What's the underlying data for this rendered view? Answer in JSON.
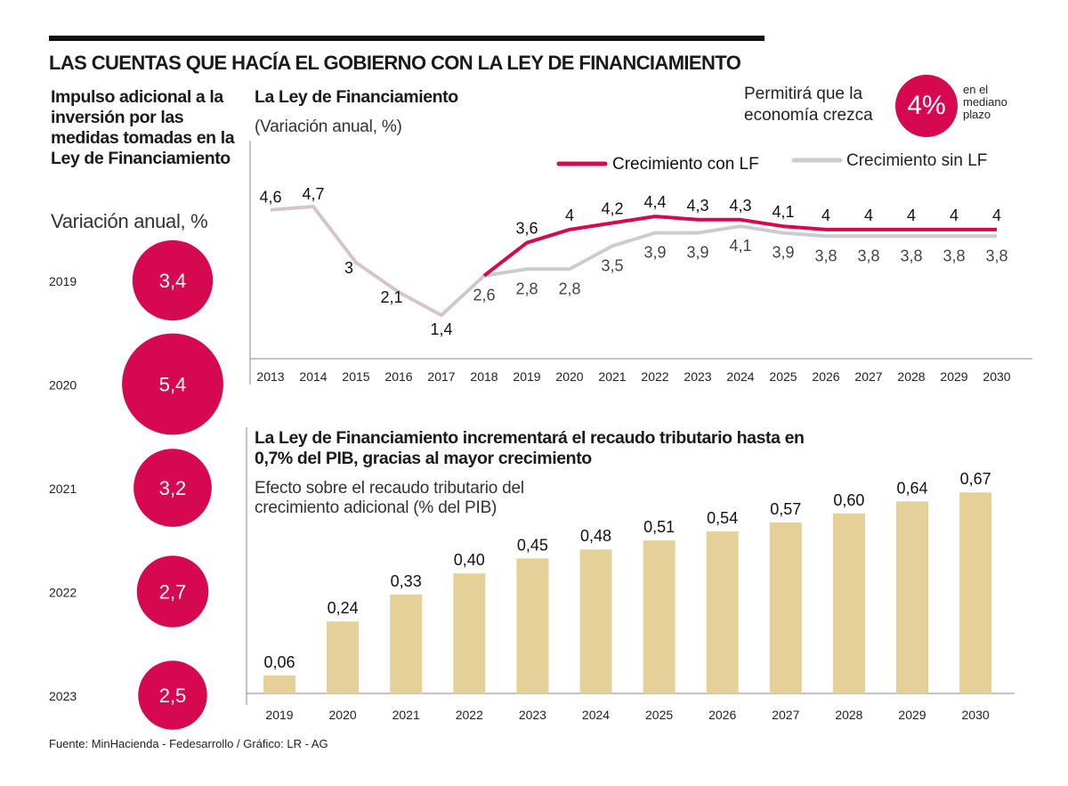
{
  "title": "LAS CUENTAS QUE HACÍA EL GOBIERNO CON LA LEY DE FINANCIAMIENTO",
  "left_panel": {
    "title": "Impulso adicional a la inversión por las medidas tomadas en la Ley de Financiamiento",
    "subtitle": "Variación anual, %",
    "items": [
      {
        "year": "2019",
        "value": 3.4,
        "label": "3,4"
      },
      {
        "year": "2020",
        "value": 5.4,
        "label": "5,4"
      },
      {
        "year": "2021",
        "value": 3.2,
        "label": "3,2"
      },
      {
        "year": "2022",
        "value": 2.7,
        "label": "2,7"
      },
      {
        "year": "2023",
        "value": 2.5,
        "label": "2,5"
      }
    ]
  },
  "kpi": {
    "text": "Permitirá que la economía crezca",
    "value": "4%",
    "note": "en el mediano plazo"
  },
  "colors": {
    "accent": "#d6084f",
    "grey_line": "#cccccc",
    "bar": "#e5d197"
  },
  "source": "Fuente: MinHacienda - Fedesarrollo  / Gráfico: LR - AG",
  "chart_data": [
    {
      "type": "line",
      "title": "La Ley de Financiamiento",
      "subtitle": "(Variación anual, %)",
      "x": [
        "2013",
        "2014",
        "2015",
        "2016",
        "2017",
        "2018",
        "2019",
        "2020",
        "2021",
        "2022",
        "2023",
        "2024",
        "2025",
        "2026",
        "2027",
        "2028",
        "2029",
        "2030"
      ],
      "series": [
        {
          "name": "Crecimiento con LF",
          "color": "#d6084f",
          "values": [
            4.6,
            4.7,
            3,
            2.1,
            1.4,
            2.6,
            3.6,
            4,
            4.2,
            4.4,
            4.3,
            4.3,
            4.1,
            4,
            4,
            4,
            4,
            4
          ],
          "labels": [
            "",
            "",
            "",
            "",
            "",
            "",
            "3,6",
            "4",
            "4,2",
            "4,4",
            "4,3",
            "4,3",
            "4,1",
            "4",
            "4",
            "4",
            "4",
            "4"
          ]
        },
        {
          "name": "Crecimiento sin LF",
          "color": "#cccccc",
          "values": [
            4.6,
            4.7,
            3,
            2.1,
            1.4,
            2.6,
            2.8,
            2.8,
            3.5,
            3.9,
            3.9,
            4.1,
            3.9,
            3.8,
            3.8,
            3.8,
            3.8,
            3.8
          ],
          "labels": [
            "4,6",
            "4,7",
            "3",
            "2,1",
            "1,4",
            "2,6",
            "2,8",
            "2,8",
            "3,5",
            "3,9",
            "3,9",
            "4,1",
            "3,9",
            "3,8",
            "3,8",
            "3,8",
            "3,8",
            "3,8"
          ]
        }
      ],
      "legend": "top-right",
      "ylim": [
        1,
        5
      ]
    },
    {
      "type": "bar",
      "title": "La Ley de Financiamiento incrementará el recaudo tributario hasta en 0,7% del PIB, gracias al mayor crecimiento",
      "subtitle": "Efecto sobre el recaudo tributario del crecimiento adicional (% del PIB)",
      "categories": [
        "2019",
        "2020",
        "2021",
        "2022",
        "2023",
        "2024",
        "2025",
        "2026",
        "2027",
        "2028",
        "2029",
        "2030"
      ],
      "values": [
        0.06,
        0.24,
        0.33,
        0.4,
        0.45,
        0.48,
        0.51,
        0.54,
        0.57,
        0.6,
        0.64,
        0.67
      ],
      "labels": [
        "0,06",
        "0,24",
        "0,33",
        "0,40",
        "0,45",
        "0,48",
        "0,51",
        "0,54",
        "0,57",
        "0,60",
        "0,64",
        "0,67"
      ],
      "ylim": [
        0,
        0.7
      ]
    }
  ]
}
